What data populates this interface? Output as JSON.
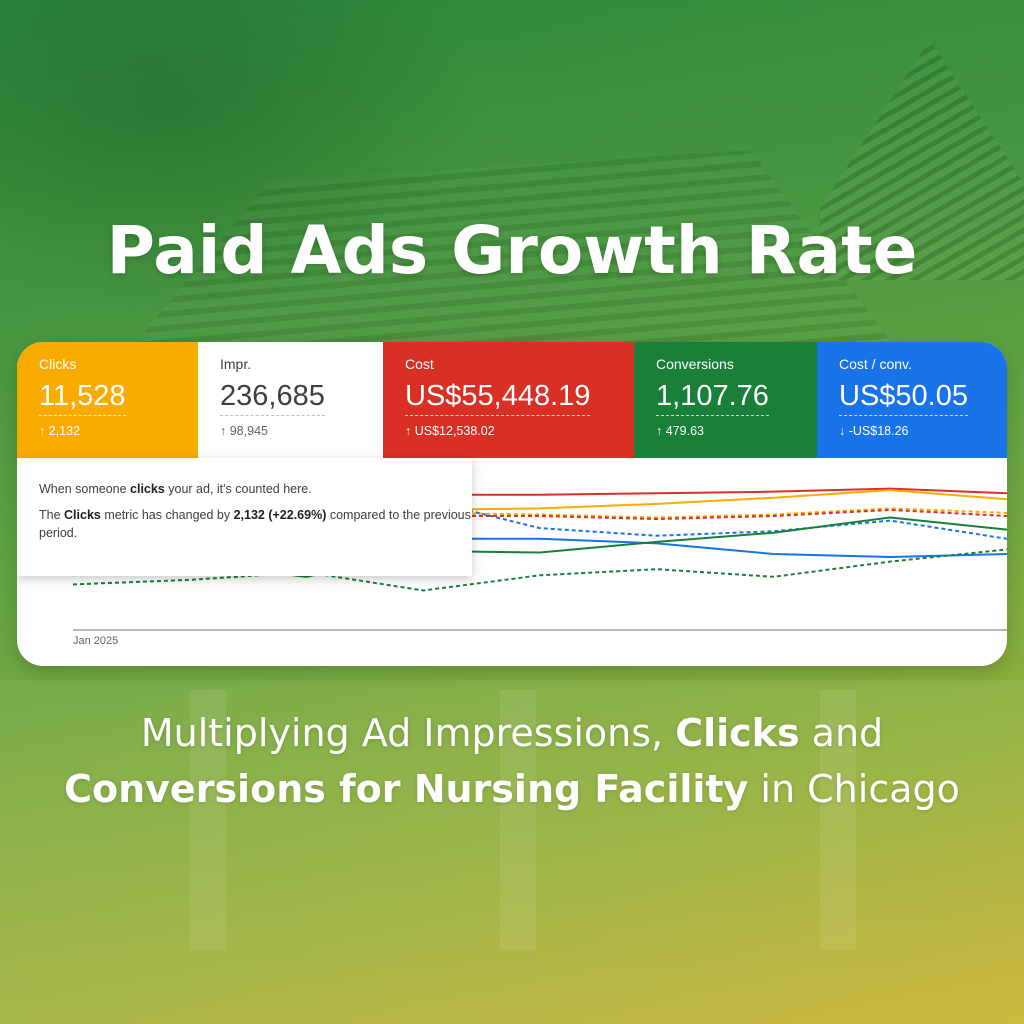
{
  "headline": "Paid Ads Growth Rate",
  "metrics": [
    {
      "label": "Clicks",
      "value": "11,528",
      "delta": "2,132",
      "direction": "up",
      "color": "#F9AB00",
      "light": false
    },
    {
      "label": "Impr.",
      "value": "236,685",
      "delta": "98,945",
      "direction": "up",
      "color": "#FFFFFF",
      "light": true
    },
    {
      "label": "Cost",
      "value": "US$55,448.19",
      "delta": "US$12,538.02",
      "direction": "up",
      "color": "#D93025",
      "light": false
    },
    {
      "label": "Conversions",
      "value": "1,107.76",
      "delta": "479.63",
      "direction": "up",
      "color": "#188038",
      "light": false
    },
    {
      "label": "Cost / conv.",
      "value": "US$50.05",
      "delta": "-US$18.26",
      "direction": "down",
      "color": "#1A73E8",
      "light": false
    }
  ],
  "tooltip": {
    "line1_pre": "When someone ",
    "line1_bold": "clicks",
    "line1_post": " your ad, it's counted here.",
    "line2_pre": "The ",
    "line2_bold1": "Clicks",
    "line2_mid": " metric has changed by ",
    "line2_bold2": "2,132 (+22.69%)",
    "line2_post": " compared to the previous period."
  },
  "chart_data": {
    "type": "line",
    "x_tick_label": "Jan 2025",
    "x": [
      0,
      1,
      2,
      3,
      4,
      5,
      6,
      7,
      8
    ],
    "series": [
      {
        "color": "#D93025",
        "style": "solid",
        "values": [
          88,
          89,
          89,
          89,
          89,
          90,
          91,
          93,
          90
        ]
      },
      {
        "color": "#F9AB00",
        "style": "solid",
        "values": [
          80,
          81,
          80,
          79,
          80,
          83,
          87,
          92,
          86
        ]
      },
      {
        "color": "#F9AB00",
        "style": "dashed",
        "values": [
          76,
          78,
          77,
          77,
          76,
          74,
          76,
          80,
          77
        ]
      },
      {
        "color": "#D93025",
        "style": "dashed",
        "values": [
          74,
          76,
          76,
          75,
          75,
          73,
          75,
          79,
          75
        ]
      },
      {
        "color": "#1A73E8",
        "style": "dashed",
        "values": [
          64,
          70,
          76,
          86,
          67,
          62,
          65,
          72,
          60
        ]
      },
      {
        "color": "#1A73E8",
        "style": "solid",
        "values": [
          55,
          57,
          58,
          60,
          60,
          57,
          50,
          48,
          50
        ]
      },
      {
        "color": "#188038",
        "style": "solid",
        "values": [
          36,
          44,
          35,
          52,
          51,
          58,
          64,
          74,
          66
        ]
      },
      {
        "color": "#188038",
        "style": "dashed",
        "values": [
          30,
          33,
          38,
          26,
          36,
          40,
          35,
          45,
          53
        ]
      }
    ],
    "ylim": [
      0,
      100
    ]
  },
  "subtitle": {
    "part1": "Multiplying Ad Impressions, ",
    "bold1": "Clicks",
    "part2": " and",
    "bold2": "Conversions for Nursing Facility",
    "part3": " in Chicago"
  }
}
